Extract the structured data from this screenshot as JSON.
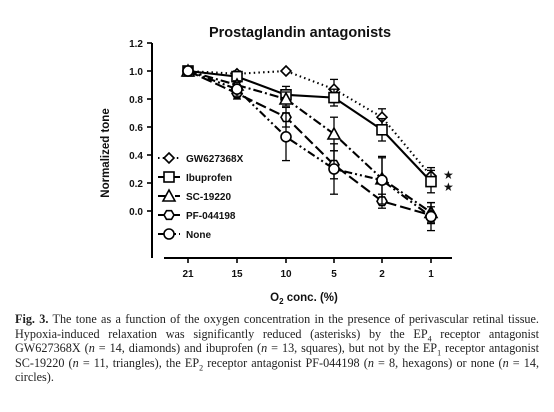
{
  "chart_data": {
    "type": "line",
    "title": "Prostaglandin antagonists",
    "xlabel_main": "O",
    "xlabel_sub": "2",
    "xlabel_rest": " conc. (%)",
    "ylabel": "Normalized tone",
    "categories": [
      "21",
      "15",
      "10",
      "5",
      "2",
      "1"
    ],
    "y_ticks": [
      "1.2",
      "1.0",
      "0.8",
      "0.6",
      "0.4",
      "0.2",
      "0.0"
    ],
    "ylim": [
      -0.1,
      1.2
    ],
    "grid": false,
    "legend_position": "left-inside",
    "series": [
      {
        "name": "GW627368X",
        "marker": "diamond",
        "dash": "dotted",
        "values": [
          1.0,
          0.98,
          1.0,
          0.87,
          0.67,
          0.25
        ],
        "errors": [
          0,
          0.02,
          0,
          0.07,
          0.06,
          0.06
        ]
      },
      {
        "name": "Ibuprofen",
        "marker": "square",
        "dash": "solid",
        "values": [
          1.0,
          0.96,
          0.83,
          0.81,
          0.58,
          0.21
        ],
        "errors": [
          0,
          0.03,
          0.06,
          0.06,
          0.08,
          0.08
        ]
      },
      {
        "name": "SC-19220",
        "marker": "triangle",
        "dash": "dashdot",
        "values": [
          1.0,
          0.9,
          0.8,
          0.55,
          0.23,
          -0.01
        ],
        "errors": [
          0,
          0.03,
          0.05,
          0.12,
          0.15,
          0.07
        ]
      },
      {
        "name": "PF-044198",
        "marker": "hexagon",
        "dash": "longdash",
        "values": [
          1.0,
          0.84,
          0.67,
          0.33,
          0.07,
          -0.03
        ],
        "errors": [
          0,
          0.04,
          0.07,
          0.1,
          0.05,
          0.06
        ]
      },
      {
        "name": "None",
        "marker": "circle",
        "dash": "dashdotdot",
        "values": [
          1.0,
          0.87,
          0.53,
          0.3,
          0.22,
          -0.04
        ],
        "errors": [
          0,
          0.05,
          0.17,
          0.18,
          0.17,
          0.1
        ]
      }
    ],
    "significance_marks": [
      "★",
      "★"
    ]
  },
  "caption": {
    "label": "Fig. 3.",
    "text_1": " The tone as a function of the oxygen concentration in the presence of perivascular retinal tissue. Hypoxia-induced relaxation was significantly reduced (asterisks) by the EP",
    "sub_1": "4",
    "text_2": " receptor antagonist GW627368X (",
    "n1": "n",
    "text_3": " = 14, diamonds) and ibuprofen (",
    "n2": "n",
    "text_4": " = 13, squares), but not by the EP",
    "sub_2": "1",
    "text_5": " receptor antagonist SC-19220 (",
    "n3": "n",
    "text_6": " = 11, triangles), the EP",
    "sub_3": "2",
    "text_7": " receptor antagonist PF-044198 (",
    "n4": "n",
    "text_8": " = 8, hexagons) or none (",
    "n5": "n",
    "text_9": " = 14, circles)."
  }
}
